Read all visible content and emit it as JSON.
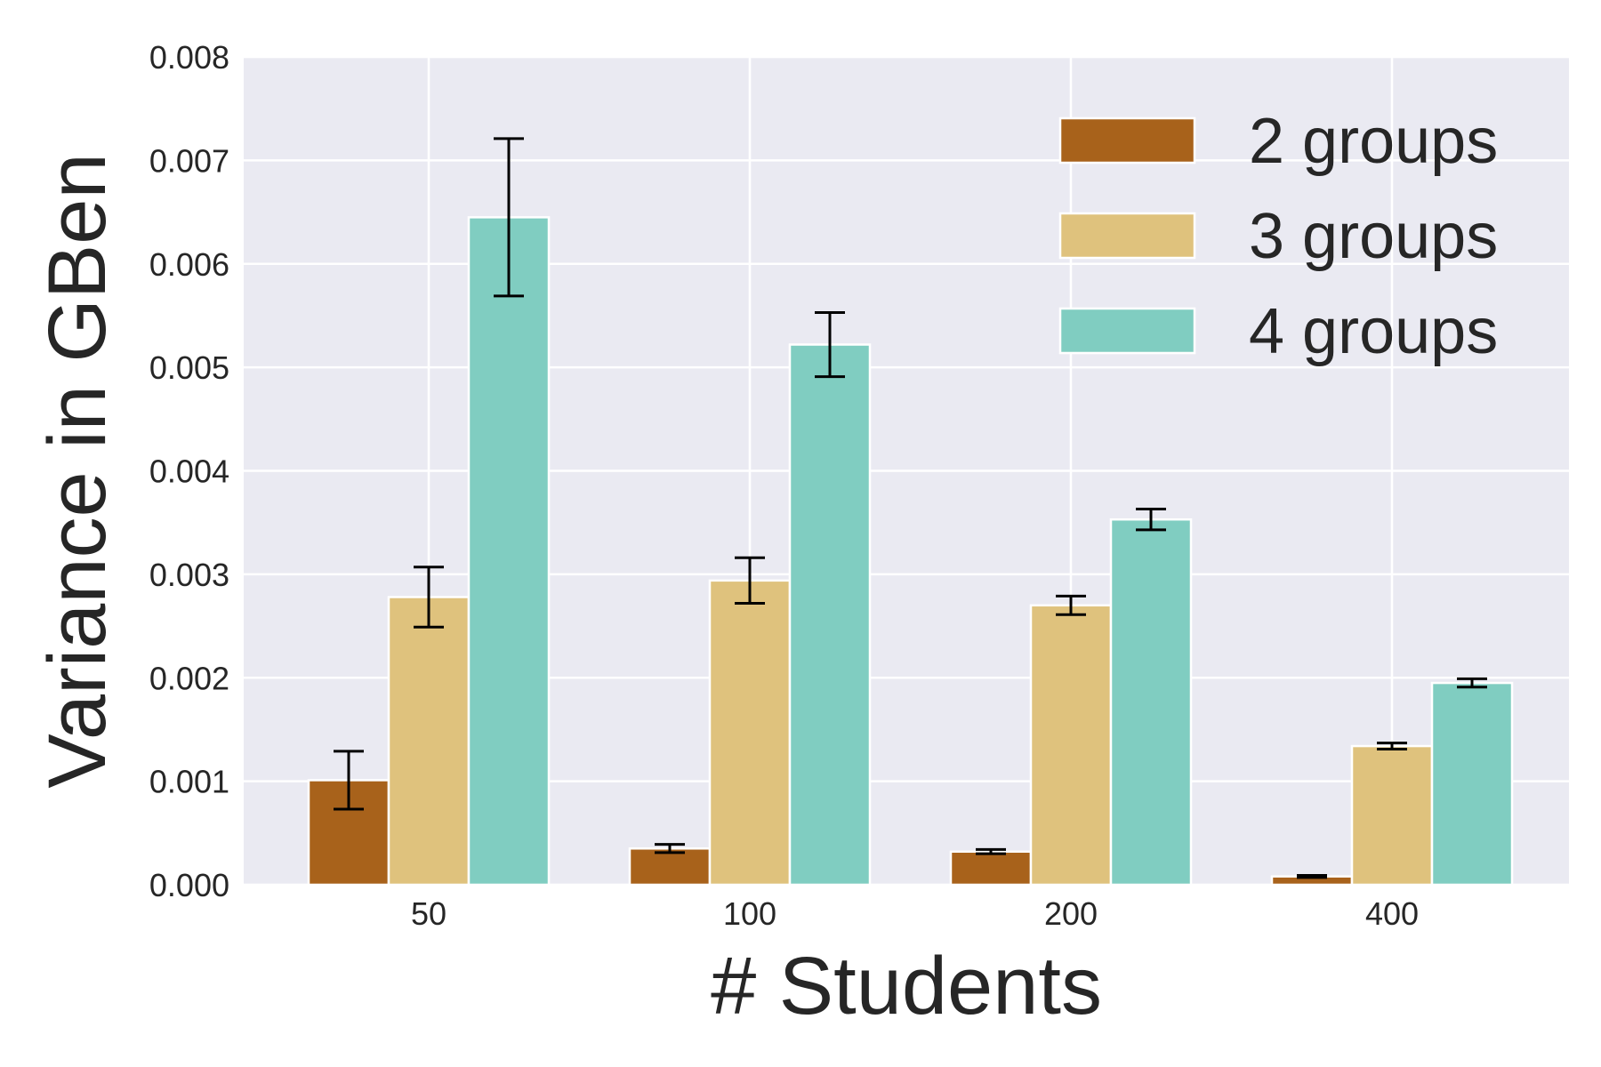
{
  "chart_data": {
    "type": "bar",
    "title": "",
    "xlabel": "# Students",
    "ylabel": "Variance in GBen",
    "categories": [
      "50",
      "100",
      "200",
      "400"
    ],
    "ylim": [
      0,
      0.008
    ],
    "yticks": [
      "0.000",
      "0.001",
      "0.002",
      "0.003",
      "0.004",
      "0.005",
      "0.006",
      "0.007",
      "0.008"
    ],
    "grid": true,
    "legend_position": "top-right",
    "background": "#eaeaf2",
    "series": [
      {
        "name": "2 groups",
        "color": "#a8621b",
        "values": [
          0.00101,
          0.00035,
          0.00032,
          8e-05
        ],
        "errors": [
          0.00028,
          4e-05,
          2e-05,
          1e-05
        ]
      },
      {
        "name": "3 groups",
        "color": "#dfc27d",
        "values": [
          0.00278,
          0.00294,
          0.0027,
          0.00134
        ],
        "errors": [
          0.00029,
          0.00022,
          9e-05,
          3e-05
        ]
      },
      {
        "name": "4 groups",
        "color": "#80cdc1",
        "values": [
          0.00645,
          0.00522,
          0.00353,
          0.00195
        ],
        "errors": [
          0.00076,
          0.00031,
          0.0001,
          4e-05
        ]
      }
    ]
  }
}
